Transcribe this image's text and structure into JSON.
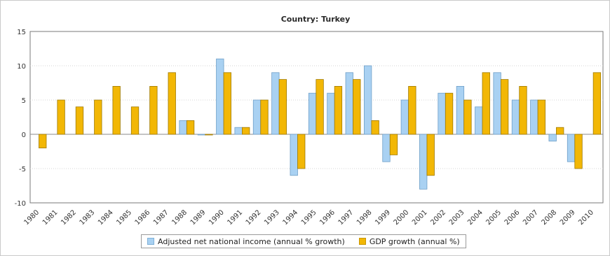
{
  "chart_data": {
    "type": "bar",
    "title": "Country: Turkey",
    "xlabel": "",
    "ylabel": "",
    "ylim": [
      -10,
      15
    ],
    "yticks": [
      -10,
      -5,
      0,
      5,
      10,
      15
    ],
    "grid": true,
    "legend_position": "bottom",
    "categories": [
      "1980",
      "1981",
      "1982",
      "1983",
      "1984",
      "1985",
      "1986",
      "1987",
      "1988",
      "1989",
      "1990",
      "1991",
      "1992",
      "1993",
      "1994",
      "1995",
      "1996",
      "1997",
      "1998",
      "1999",
      "2000",
      "2001",
      "2002",
      "2003",
      "2004",
      "2005",
      "2006",
      "2007",
      "2008",
      "2009",
      "2010"
    ],
    "series": [
      {
        "name": "Adjusted net national income (annual % growth)",
        "color": "#a9d1f2",
        "values": [
          null,
          null,
          null,
          null,
          null,
          null,
          null,
          null,
          2,
          -0.1,
          11,
          1,
          5,
          9,
          -6,
          6,
          6,
          9,
          10,
          -4,
          5,
          -8,
          6,
          7,
          4,
          9,
          5,
          5,
          -1,
          -4,
          null
        ]
      },
      {
        "name": "GDP growth (annual %)",
        "color": "#f2b705",
        "values": [
          -2,
          5,
          4,
          5,
          7,
          4,
          7,
          9,
          2,
          0,
          9,
          1,
          5,
          8,
          -5,
          8,
          7,
          8,
          2,
          -3,
          7,
          -6,
          6,
          5,
          9,
          8,
          7,
          5,
          1,
          -5,
          9
        ]
      }
    ]
  }
}
